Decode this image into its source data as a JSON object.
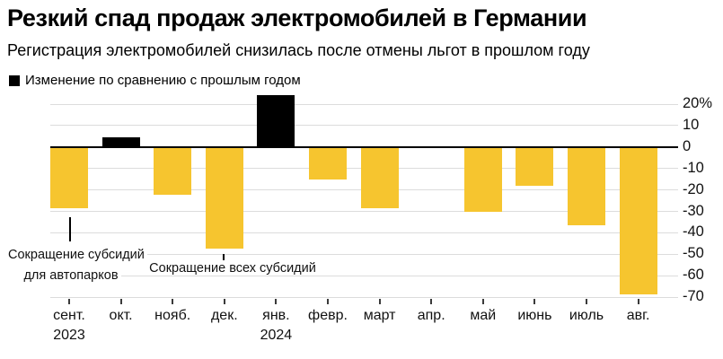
{
  "header": {
    "title": "Резкий спад продаж электромобилей в Германии",
    "subtitle": "Регистрация электромобилей снизилась после отмены льгот в прошлом году"
  },
  "legend": {
    "label": "Изменение по сравнению с прошлым годом",
    "swatch_color": "#000000"
  },
  "colors": {
    "positive_bar": "#000000",
    "negative_bar": "#f6c52f",
    "gridline": "#dcdcdc",
    "zero_line": "#000000",
    "text": "#111111"
  },
  "chart_data": {
    "type": "bar",
    "title": "Резкий спад продаж электромобилей в Германии",
    "subtitle": "Регистрация электромобилей снизилась после отмены льгот в прошлом году",
    "series_name": "Изменение по сравнению с прошлым годом",
    "categories": [
      "сент.",
      "окт.",
      "нояб.",
      "дек.",
      "янв.",
      "февр.",
      "март",
      "апр.",
      "май",
      "июнь",
      "июль",
      "авг."
    ],
    "values": [
      -28.6,
      4.3,
      -22.5,
      -47.6,
      23.9,
      -15.4,
      -28.9,
      -0.2,
      -30.6,
      -18.1,
      -36.8,
      -68.8
    ],
    "unit": "%",
    "xlabel": "",
    "ylabel": "",
    "year_labels": [
      {
        "index": 0,
        "label": "2023"
      },
      {
        "index": 4,
        "label": "2024"
      }
    ],
    "yticks": [
      20,
      10,
      0,
      -10,
      -20,
      -30,
      -40,
      -50,
      -60,
      -70
    ],
    "ytick_labels": [
      "20%",
      "10",
      "0",
      "-10",
      "-20",
      "-30",
      "-40",
      "-50",
      "-60",
      "-70"
    ],
    "ylim": [
      -70,
      26
    ],
    "grid": true,
    "legend_position": "top-left",
    "bar_color_rule": "positive bars black, negative bars yellow",
    "annotations": [
      {
        "text_lines": [
          "Сокращение субсидий",
          "для автопарков"
        ],
        "target_month": "сент."
      },
      {
        "text_lines": [
          "Сокращение всех субсидий"
        ],
        "target_month": "дек."
      }
    ]
  }
}
